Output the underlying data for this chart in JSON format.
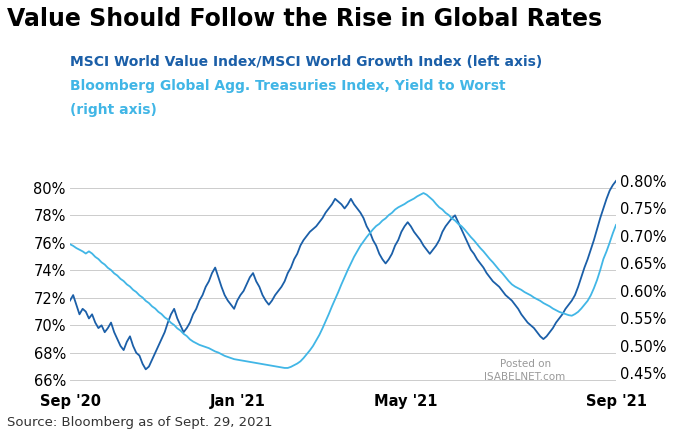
{
  "title": "Value Should Follow the Rise in Global Rates",
  "legend_line1": "MSCI World Value Index/MSCI World Growth Index (left axis)",
  "legend_line2_a": "Bloomberg Global Agg. Treasuries Index, Yield to Worst",
  "legend_line2_b": "(right axis)",
  "source": "Source: Bloomberg as of Sept. 29, 2021",
  "watermark_line1": "Posted on",
  "watermark_line2": "ISABELNET.com",
  "left_ylim": [
    65.5,
    81.5
  ],
  "right_ylim": [
    0.425,
    0.825
  ],
  "left_yticks": [
    66,
    68,
    70,
    72,
    74,
    76,
    78,
    80
  ],
  "right_yticks": [
    0.45,
    0.5,
    0.55,
    0.6,
    0.65,
    0.7,
    0.75,
    0.8
  ],
  "color_dark_blue": "#1B5FA8",
  "color_light_blue": "#41B6E6",
  "background_color": "#ffffff",
  "title_fontsize": 17,
  "legend_fontsize": 10,
  "source_fontsize": 9.5,
  "xtick_labels": [
    "Sep '20",
    "Jan '21",
    "May '21",
    "Sep '21"
  ],
  "msci_data": [
    71.8,
    72.2,
    71.5,
    70.8,
    71.2,
    71.0,
    70.5,
    70.8,
    70.2,
    69.8,
    70.0,
    69.5,
    69.8,
    70.2,
    69.5,
    69.0,
    68.5,
    68.2,
    68.8,
    69.2,
    68.5,
    68.0,
    67.8,
    67.2,
    66.8,
    67.0,
    67.5,
    68.0,
    68.5,
    69.0,
    69.5,
    70.2,
    70.8,
    71.2,
    70.5,
    70.0,
    69.5,
    69.8,
    70.2,
    70.8,
    71.2,
    71.8,
    72.2,
    72.8,
    73.2,
    73.8,
    74.2,
    73.5,
    72.8,
    72.2,
    71.8,
    71.5,
    71.2,
    71.8,
    72.2,
    72.5,
    73.0,
    73.5,
    73.8,
    73.2,
    72.8,
    72.2,
    71.8,
    71.5,
    71.8,
    72.2,
    72.5,
    72.8,
    73.2,
    73.8,
    74.2,
    74.8,
    75.2,
    75.8,
    76.2,
    76.5,
    76.8,
    77.0,
    77.2,
    77.5,
    77.8,
    78.2,
    78.5,
    78.8,
    79.2,
    79.0,
    78.8,
    78.5,
    78.8,
    79.2,
    78.8,
    78.5,
    78.2,
    77.8,
    77.2,
    76.8,
    76.2,
    75.8,
    75.2,
    74.8,
    74.5,
    74.8,
    75.2,
    75.8,
    76.2,
    76.8,
    77.2,
    77.5,
    77.2,
    76.8,
    76.5,
    76.2,
    75.8,
    75.5,
    75.2,
    75.5,
    75.8,
    76.2,
    76.8,
    77.2,
    77.5,
    77.8,
    78.0,
    77.5,
    77.0,
    76.5,
    76.0,
    75.5,
    75.2,
    74.8,
    74.5,
    74.2,
    73.8,
    73.5,
    73.2,
    73.0,
    72.8,
    72.5,
    72.2,
    72.0,
    71.8,
    71.5,
    71.2,
    70.8,
    70.5,
    70.2,
    70.0,
    69.8,
    69.5,
    69.2,
    69.0,
    69.2,
    69.5,
    69.8,
    70.2,
    70.5,
    70.8,
    71.2,
    71.5,
    71.8,
    72.2,
    72.8,
    73.5,
    74.2,
    74.8,
    75.5,
    76.2,
    77.0,
    77.8,
    78.5,
    79.2,
    79.8,
    80.2,
    80.5
  ],
  "ytw_data": [
    0.685,
    0.682,
    0.678,
    0.675,
    0.672,
    0.668,
    0.672,
    0.668,
    0.662,
    0.658,
    0.652,
    0.648,
    0.642,
    0.638,
    0.632,
    0.628,
    0.622,
    0.618,
    0.612,
    0.608,
    0.602,
    0.598,
    0.592,
    0.588,
    0.582,
    0.578,
    0.572,
    0.568,
    0.562,
    0.558,
    0.552,
    0.548,
    0.542,
    0.538,
    0.532,
    0.528,
    0.522,
    0.518,
    0.512,
    0.508,
    0.505,
    0.502,
    0.5,
    0.498,
    0.496,
    0.493,
    0.49,
    0.488,
    0.485,
    0.482,
    0.48,
    0.478,
    0.476,
    0.475,
    0.474,
    0.473,
    0.472,
    0.471,
    0.47,
    0.469,
    0.468,
    0.467,
    0.466,
    0.465,
    0.464,
    0.463,
    0.462,
    0.461,
    0.46,
    0.46,
    0.462,
    0.465,
    0.468,
    0.472,
    0.478,
    0.485,
    0.492,
    0.5,
    0.51,
    0.52,
    0.532,
    0.545,
    0.558,
    0.572,
    0.585,
    0.598,
    0.612,
    0.625,
    0.638,
    0.65,
    0.662,
    0.672,
    0.682,
    0.69,
    0.698,
    0.705,
    0.712,
    0.718,
    0.722,
    0.728,
    0.732,
    0.738,
    0.742,
    0.748,
    0.752,
    0.755,
    0.758,
    0.762,
    0.765,
    0.768,
    0.772,
    0.775,
    0.778,
    0.775,
    0.77,
    0.765,
    0.758,
    0.752,
    0.748,
    0.742,
    0.738,
    0.732,
    0.728,
    0.722,
    0.718,
    0.712,
    0.705,
    0.698,
    0.692,
    0.685,
    0.678,
    0.672,
    0.665,
    0.658,
    0.652,
    0.645,
    0.638,
    0.632,
    0.625,
    0.618,
    0.612,
    0.608,
    0.605,
    0.602,
    0.598,
    0.595,
    0.592,
    0.588,
    0.585,
    0.582,
    0.578,
    0.575,
    0.572,
    0.568,
    0.565,
    0.562,
    0.56,
    0.558,
    0.556,
    0.555,
    0.558,
    0.562,
    0.568,
    0.575,
    0.582,
    0.592,
    0.605,
    0.62,
    0.638,
    0.658,
    0.672,
    0.688,
    0.705,
    0.72
  ]
}
